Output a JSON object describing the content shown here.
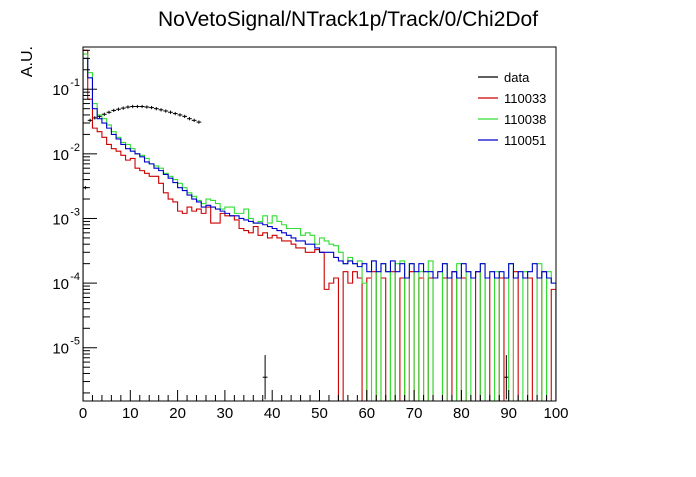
{
  "chart_data": {
    "type": "line",
    "title": "NoVetoSignal/NTrack1p/Track/0/Chi2Dof",
    "xlabel": "",
    "ylabel": "A.U.",
    "xlim": [
      0,
      100
    ],
    "ylim": [
      1.5e-06,
      0.45
    ],
    "y_scale": "log",
    "x_ticks": [
      "0",
      "10",
      "20",
      "30",
      "40",
      "50",
      "60",
      "70",
      "80",
      "90",
      "100"
    ],
    "y_ticks": [
      {
        "value": 1e-05,
        "base": "10",
        "exp": "-5"
      },
      {
        "value": 0.0001,
        "base": "10",
        "exp": "-4"
      },
      {
        "value": 0.001,
        "base": "10",
        "exp": "-3"
      },
      {
        "value": 0.01,
        "base": "10",
        "exp": "-2"
      },
      {
        "value": 0.1,
        "base": "10",
        "exp": "-1"
      }
    ],
    "grid": false,
    "legend_position": "top-right",
    "bin_width": 1,
    "series": [
      {
        "name": "data",
        "color": "#000000",
        "style": "points",
        "x": [
          0.5,
          1.5,
          2.5,
          3.5,
          4.5,
          5.5,
          6.5,
          7.5,
          8.5,
          9.5,
          10.5,
          11.5,
          12.5,
          13.5,
          14.5,
          15.5,
          16.5,
          17.5,
          18.5,
          19.5,
          20.5,
          21.5,
          22.5,
          23.5,
          24.5,
          38.5,
          89.5
        ],
        "y": [
          0.003,
          0.033,
          0.036,
          0.038,
          0.041,
          0.044,
          0.047,
          0.049,
          0.051,
          0.053,
          0.054,
          0.054,
          0.054,
          0.053,
          0.052,
          0.05,
          0.048,
          0.046,
          0.044,
          0.042,
          0.04,
          0.038,
          0.035,
          0.033,
          0.031,
          3.5e-06,
          3.5e-06
        ]
      },
      {
        "name": "110033",
        "color": "#cc0000",
        "style": "step",
        "values": [
          0.4,
          0.07,
          0.025,
          0.022,
          0.018,
          0.014,
          0.012,
          0.011,
          0.0095,
          0.008,
          0.0085,
          0.006,
          0.0055,
          0.005,
          0.0045,
          0.0045,
          0.0035,
          0.0025,
          0.002,
          0.0018,
          0.0013,
          0.0012,
          0.0015,
          0.0013,
          0.0014,
          0.0012,
          0.0015,
          0.00085,
          0.00085,
          0.0012,
          0.0011,
          0.0011,
          0.00095,
          0.0007,
          0.00065,
          0.0006,
          0.00075,
          0.00055,
          0.0006,
          0.0005,
          0.00055,
          0.0005,
          0.00045,
          0.00045,
          0.0004,
          0.00035,
          0.00035,
          0.0003,
          0.0003,
          0.00033,
          0.0003,
          8e-05,
          0.0001,
          0.00012,
          1e-07,
          0.00015,
          0.0001,
          0.00015,
          0.00012,
          1e-07,
          0.00012,
          0.00015,
          1e-07,
          0.00012,
          1e-07,
          0.00015,
          1e-07,
          0.00012,
          1e-07,
          0.00015,
          1e-07,
          0.00012,
          1e-07,
          0.00012,
          1e-07,
          1e-07,
          0.00012,
          1e-07,
          0.00015,
          1e-07,
          0.00012,
          1e-07,
          1e-07,
          0.00015,
          1e-07,
          0.00012,
          1e-07,
          1e-07,
          0.00012,
          1e-07,
          1e-07,
          0.00015,
          1e-07,
          1e-07,
          0.00012,
          1e-07,
          1e-07,
          0.00015,
          1e-07,
          8e-05
        ]
      },
      {
        "name": "110038",
        "color": "#33dd33",
        "style": "step",
        "values": [
          0.35,
          0.18,
          0.06,
          0.04,
          0.035,
          0.028,
          0.022,
          0.018,
          0.015,
          0.014,
          0.012,
          0.01,
          0.0095,
          0.0085,
          0.007,
          0.0065,
          0.006,
          0.005,
          0.0045,
          0.004,
          0.0035,
          0.003,
          0.0025,
          0.0022,
          0.0019,
          0.0017,
          0.002,
          0.0019,
          0.0017,
          0.0014,
          0.0015,
          0.0015,
          0.0012,
          0.0012,
          0.0014,
          0.001,
          0.00085,
          0.0009,
          0.0011,
          0.00085,
          0.0011,
          0.0009,
          0.0008,
          0.0007,
          0.0007,
          0.0007,
          0.00055,
          0.0006,
          0.00055,
          0.0004,
          0.0005,
          0.00045,
          0.0004,
          0.00038,
          0.0003,
          0.0002,
          0.00025,
          0.0002,
          0.00022,
          0.0001,
          1e-07,
          0.00022,
          1e-07,
          0.0002,
          0.00015,
          1e-07,
          0.0002,
          0.00022,
          1e-07,
          0.0002,
          1e-07,
          0.00015,
          1e-07,
          0.00022,
          1e-07,
          1e-07,
          0.0002,
          1e-07,
          1e-07,
          0.0002,
          1e-07,
          0.00015,
          1e-07,
          1e-07,
          0.0002,
          1e-07,
          1e-07,
          0.00015,
          1e-07,
          1e-07,
          0.0002,
          1e-07,
          1e-07,
          0.00015,
          1e-07,
          1e-07,
          0.0002,
          1e-07,
          0.00015,
          0.0001
        ]
      },
      {
        "name": "110051",
        "color": "#0000cc",
        "style": "step",
        "values": [
          0.3,
          0.15,
          0.05,
          0.035,
          0.03,
          0.025,
          0.02,
          0.017,
          0.014,
          0.012,
          0.011,
          0.01,
          0.009,
          0.0075,
          0.007,
          0.006,
          0.0055,
          0.0048,
          0.0042,
          0.0036,
          0.003,
          0.0027,
          0.0023,
          0.002,
          0.0018,
          0.0015,
          0.0016,
          0.0015,
          0.0014,
          0.0013,
          0.0012,
          0.0011,
          0.0011,
          0.001,
          0.00095,
          0.0009,
          0.00085,
          0.00085,
          0.0008,
          0.00075,
          0.0007,
          0.00065,
          0.0006,
          0.00055,
          0.0005,
          0.00045,
          0.00045,
          0.0004,
          0.0004,
          0.00035,
          0.0003,
          0.0003,
          0.0003,
          0.00025,
          0.00022,
          0.0002,
          0.00022,
          0.0002,
          0.00018,
          0.0002,
          0.00015,
          0.00022,
          0.00015,
          0.0002,
          0.00015,
          0.00022,
          0.00015,
          0.0002,
          0.00012,
          0.0002,
          0.00015,
          0.0002,
          0.00015,
          0.00015,
          0.00012,
          0.00015,
          0.0002,
          0.00012,
          0.00015,
          0.00012,
          0.0002,
          0.00015,
          0.00012,
          0.00015,
          0.0002,
          0.00012,
          0.00015,
          0.00012,
          0.00015,
          0.00012,
          0.0002,
          0.00012,
          0.00015,
          0.00012,
          0.00015,
          0.0002,
          0.00012,
          0.00015,
          0.00012,
          0.0001
        ]
      }
    ]
  }
}
